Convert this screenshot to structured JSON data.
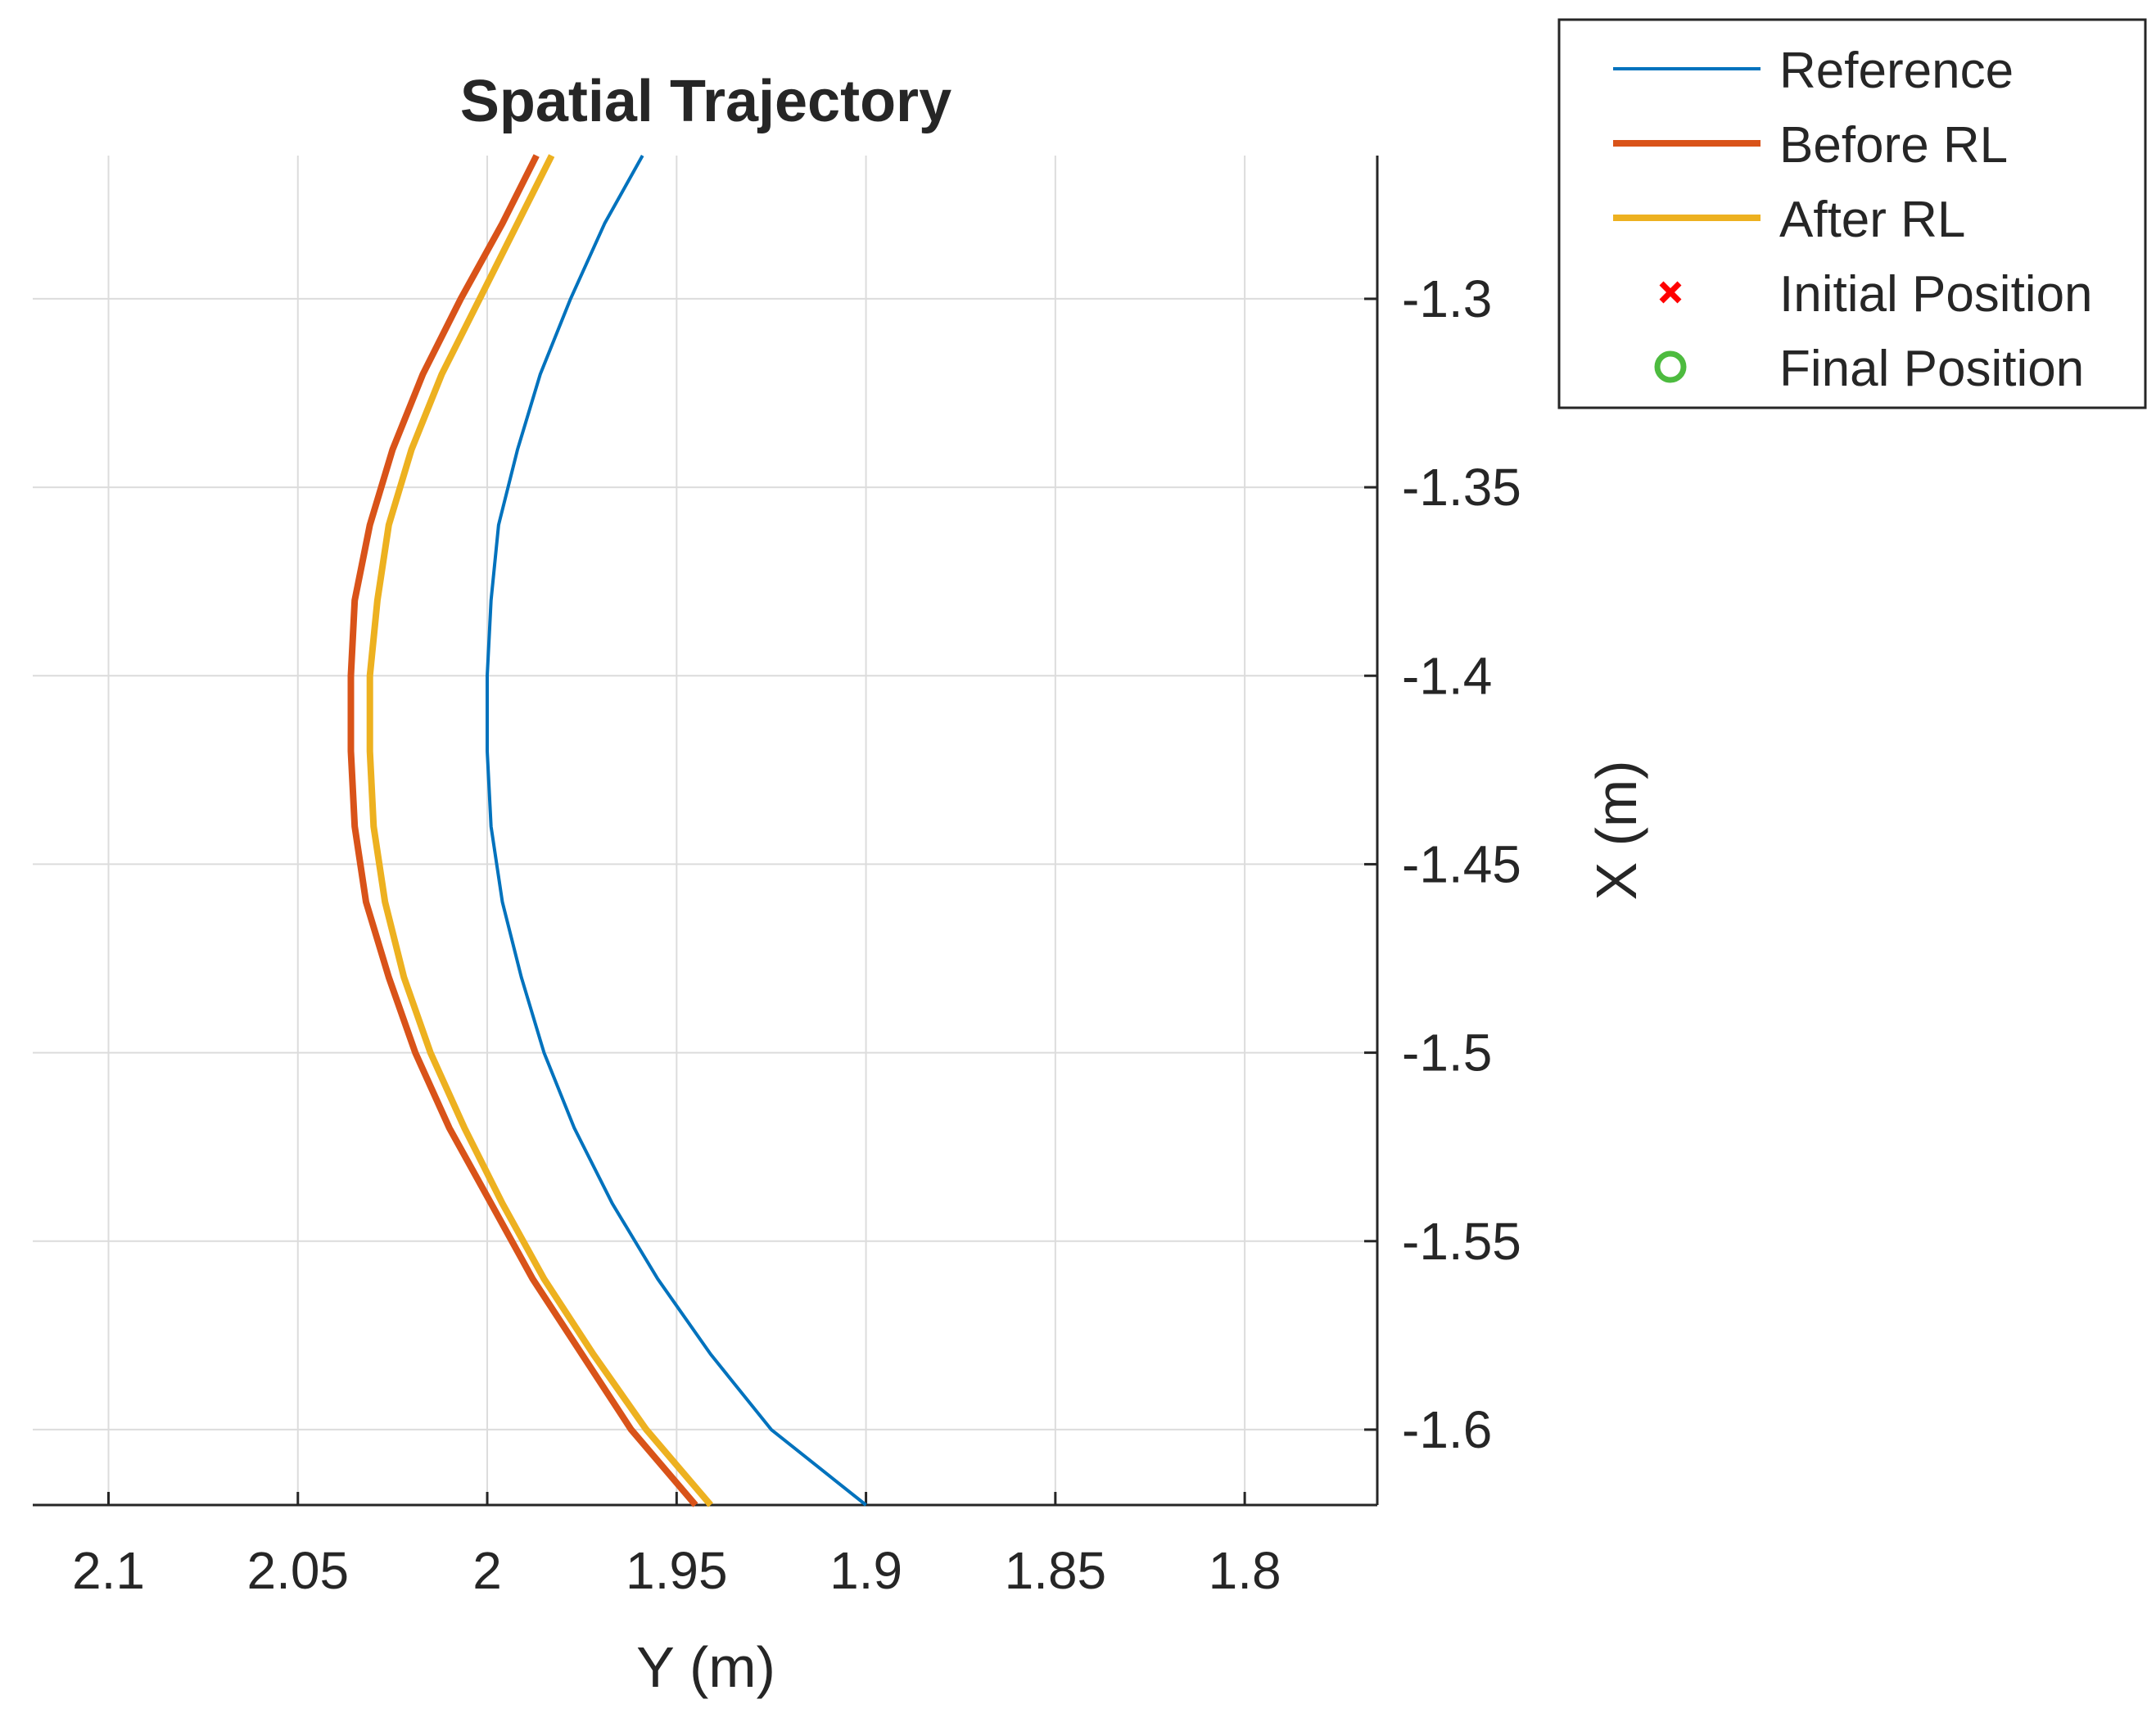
{
  "chart_data": {
    "type": "line",
    "title": "Spatial Trajectory",
    "xlabel": "Y (m)",
    "ylabel": "X (m)",
    "x_axis_reversed": true,
    "y_axis_location": "right",
    "xlim": [
      1.765,
      2.12
    ],
    "ylim": [
      -1.62,
      -1.262
    ],
    "xticks": [
      2.1,
      2.05,
      2,
      1.95,
      1.9,
      1.85,
      1.8
    ],
    "xtick_labels": [
      "2.1",
      "2.05",
      "2",
      "1.95",
      "1.9",
      "1.85",
      "1.8"
    ],
    "yticks": [
      -1.3,
      -1.35,
      -1.4,
      -1.45,
      -1.5,
      -1.55,
      -1.6
    ],
    "ytick_labels": [
      "-1.3",
      "-1.35",
      "-1.4",
      "-1.45",
      "-1.5",
      "-1.55",
      "-1.6"
    ],
    "grid": true,
    "legend_position": "top-right",
    "series": [
      {
        "name": "Reference",
        "color": "#0072BD",
        "width": "thin",
        "points": [
          [
            1.959,
            -1.262
          ],
          [
            1.969,
            -1.28
          ],
          [
            1.978,
            -1.3
          ],
          [
            1.986,
            -1.32
          ],
          [
            1.992,
            -1.34
          ],
          [
            1.997,
            -1.36
          ],
          [
            1.999,
            -1.38
          ],
          [
            2.0,
            -1.4
          ],
          [
            2.0,
            -1.42
          ],
          [
            1.999,
            -1.44
          ],
          [
            1.996,
            -1.46
          ],
          [
            1.991,
            -1.48
          ],
          [
            1.985,
            -1.5
          ],
          [
            1.977,
            -1.52
          ],
          [
            1.967,
            -1.54
          ],
          [
            1.955,
            -1.56
          ],
          [
            1.941,
            -1.58
          ],
          [
            1.925,
            -1.6
          ],
          [
            1.9,
            -1.62
          ]
        ]
      },
      {
        "name": "Before RL",
        "color": "#D95319",
        "width": "thick",
        "points": [
          [
            1.987,
            -1.262
          ],
          [
            1.996,
            -1.28
          ],
          [
            2.007,
            -1.3
          ],
          [
            2.017,
            -1.32
          ],
          [
            2.025,
            -1.34
          ],
          [
            2.031,
            -1.36
          ],
          [
            2.035,
            -1.38
          ],
          [
            2.036,
            -1.4
          ],
          [
            2.036,
            -1.42
          ],
          [
            2.035,
            -1.44
          ],
          [
            2.032,
            -1.46
          ],
          [
            2.026,
            -1.48
          ],
          [
            2.019,
            -1.5
          ],
          [
            2.01,
            -1.52
          ],
          [
            1.999,
            -1.54
          ],
          [
            1.988,
            -1.56
          ],
          [
            1.975,
            -1.58
          ],
          [
            1.962,
            -1.6
          ],
          [
            1.945,
            -1.62
          ]
        ]
      },
      {
        "name": "After RL",
        "color": "#EDB120",
        "width": "thick",
        "points": [
          [
            1.983,
            -1.262
          ],
          [
            1.992,
            -1.28
          ],
          [
            2.002,
            -1.3
          ],
          [
            2.012,
            -1.32
          ],
          [
            2.02,
            -1.34
          ],
          [
            2.026,
            -1.36
          ],
          [
            2.029,
            -1.38
          ],
          [
            2.031,
            -1.4
          ],
          [
            2.031,
            -1.42
          ],
          [
            2.03,
            -1.44
          ],
          [
            2.027,
            -1.46
          ],
          [
            2.022,
            -1.48
          ],
          [
            2.015,
            -1.5
          ],
          [
            2.006,
            -1.52
          ],
          [
            1.996,
            -1.54
          ],
          [
            1.985,
            -1.56
          ],
          [
            1.972,
            -1.58
          ],
          [
            1.958,
            -1.6
          ],
          [
            1.941,
            -1.62
          ]
        ]
      }
    ],
    "markers": [
      {
        "name": "Initial Position",
        "symbol": "x",
        "color": "#FF0000",
        "visible_in_plot": false
      },
      {
        "name": "Final Position",
        "symbol": "o",
        "color": "#4DBB3F",
        "visible_in_plot": false
      }
    ]
  }
}
